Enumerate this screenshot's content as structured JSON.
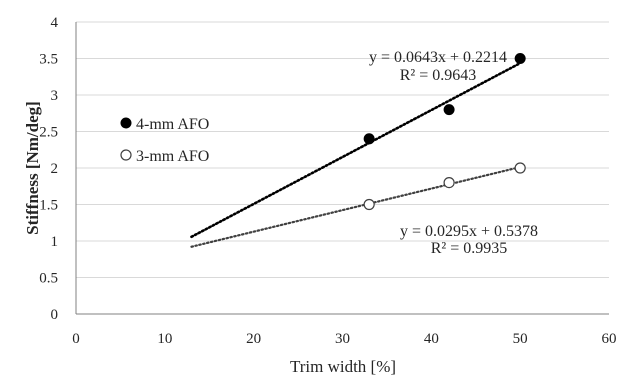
{
  "chart_data": {
    "type": "scatter",
    "title": "",
    "xlabel": "Trim width [%]",
    "ylabel": "Stiffness [Nm/deg]",
    "xlim": [
      0,
      60
    ],
    "ylim": [
      0,
      4
    ],
    "x_ticks": [
      0,
      10,
      20,
      30,
      40,
      50,
      60
    ],
    "y_ticks": [
      0,
      0.5,
      1,
      1.5,
      2,
      2.5,
      3,
      3.5,
      4
    ],
    "x_tick_labels": [
      "0",
      "10",
      "20",
      "30",
      "40",
      "50",
      "60"
    ],
    "y_tick_labels": [
      "0",
      "0.5",
      "1",
      "1.5",
      "2",
      "2.5",
      "3",
      "3.5",
      "4"
    ],
    "grid": "horizontal",
    "legend_position": "left",
    "series": [
      {
        "name": "4-mm AFO",
        "marker": "filled-circle",
        "color": "#000000",
        "points": [
          [
            33,
            2.4
          ],
          [
            42,
            2.8
          ],
          [
            50,
            3.5
          ]
        ],
        "trendline": {
          "type": "linear",
          "slope": 0.0643,
          "intercept": 0.2214,
          "x_range": [
            13,
            50
          ],
          "equation": "y = 0.0643x + 0.2214",
          "r2_label": "R² = 0.9643"
        }
      },
      {
        "name": "3-mm AFO",
        "marker": "open-circle",
        "color": "#404040",
        "points": [
          [
            33,
            1.5
          ],
          [
            42,
            1.8
          ],
          [
            50,
            2.0
          ]
        ],
        "trendline": {
          "type": "linear",
          "slope": 0.0295,
          "intercept": 0.5378,
          "x_range": [
            13,
            50
          ],
          "equation": "y = 0.0295x + 0.5378",
          "r2_label": "R² = 0.9935"
        }
      }
    ]
  }
}
